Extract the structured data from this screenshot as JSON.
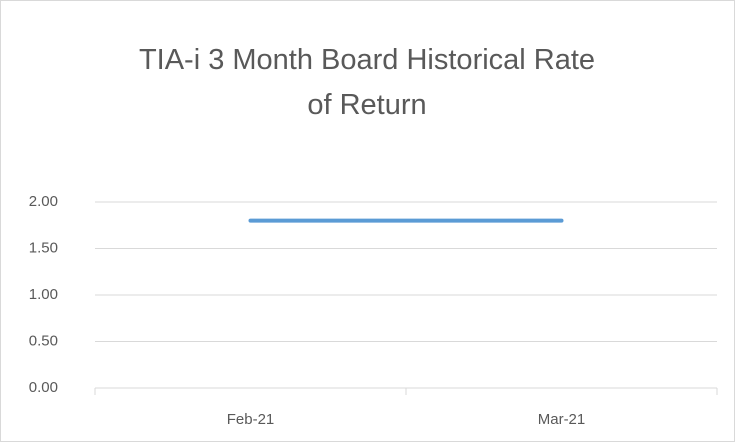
{
  "chart_data": {
    "type": "line",
    "title": "TIA-i 3 Month Board Historical Rate of Return",
    "categories": [
      "Feb-21",
      "Mar-21"
    ],
    "values": [
      1.8,
      1.8
    ],
    "color": "#5b9bd5",
    "ylim": [
      0,
      2
    ],
    "yticks": [
      {
        "value": 0,
        "label": "0.00"
      },
      {
        "value": 0.5,
        "label": "0.50"
      },
      {
        "value": 1,
        "label": "1.00"
      },
      {
        "value": 1.5,
        "label": "1.50"
      },
      {
        "value": 2,
        "label": "2.00"
      }
    ],
    "grid": true
  }
}
